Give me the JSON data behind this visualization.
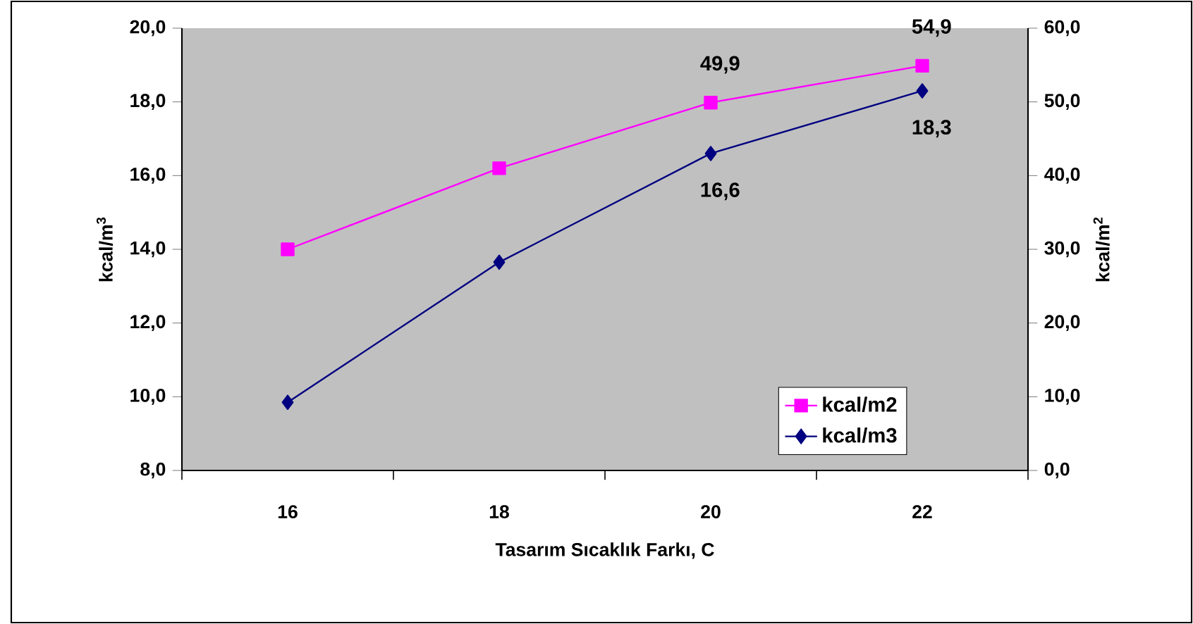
{
  "chart_data": {
    "type": "line",
    "categories": [
      "16",
      "18",
      "20",
      "22"
    ],
    "xlabel": "Tasarım Sıcaklık Farkı, C",
    "ylabel": "kcal/m$^{3}$",
    "y2label": "kcal/m$^{2}$",
    "ylim": [
      8,
      20
    ],
    "yticks": [
      {
        "value": 8,
        "label": "8,0"
      },
      {
        "value": 10,
        "label": "10,0"
      },
      {
        "value": 12,
        "label": "12,0"
      },
      {
        "value": 14,
        "label": "14,0"
      },
      {
        "value": 16,
        "label": "16,0"
      },
      {
        "value": 18,
        "label": "18,0"
      },
      {
        "value": 20,
        "label": "20,0"
      }
    ],
    "y2lim": [
      0,
      60
    ],
    "y2ticks": [
      {
        "value": 0,
        "label": "0,0"
      },
      {
        "value": 10,
        "label": "10,0"
      },
      {
        "value": 20,
        "label": "20,0"
      },
      {
        "value": 30,
        "label": "30,0"
      },
      {
        "value": 40,
        "label": "40,0"
      },
      {
        "value": 50,
        "label": "50,0"
      },
      {
        "value": 60,
        "label": "60,0"
      }
    ],
    "series": [
      {
        "name": "kcal/m2",
        "color": "#ff00ff",
        "axis": "y2",
        "marker": "square",
        "values": [
          30.0,
          41.0,
          49.9,
          54.9
        ],
        "value_labels": [
          null,
          null,
          "49,9",
          "54,9"
        ]
      },
      {
        "name": "kcal/m3",
        "color": "#000080",
        "marker": "diamond",
        "values": [
          9.85,
          13.65,
          16.6,
          18.3
        ],
        "value_labels": [
          null,
          null,
          "16,6",
          "18,3"
        ]
      }
    ],
    "legend": "bottom right"
  }
}
